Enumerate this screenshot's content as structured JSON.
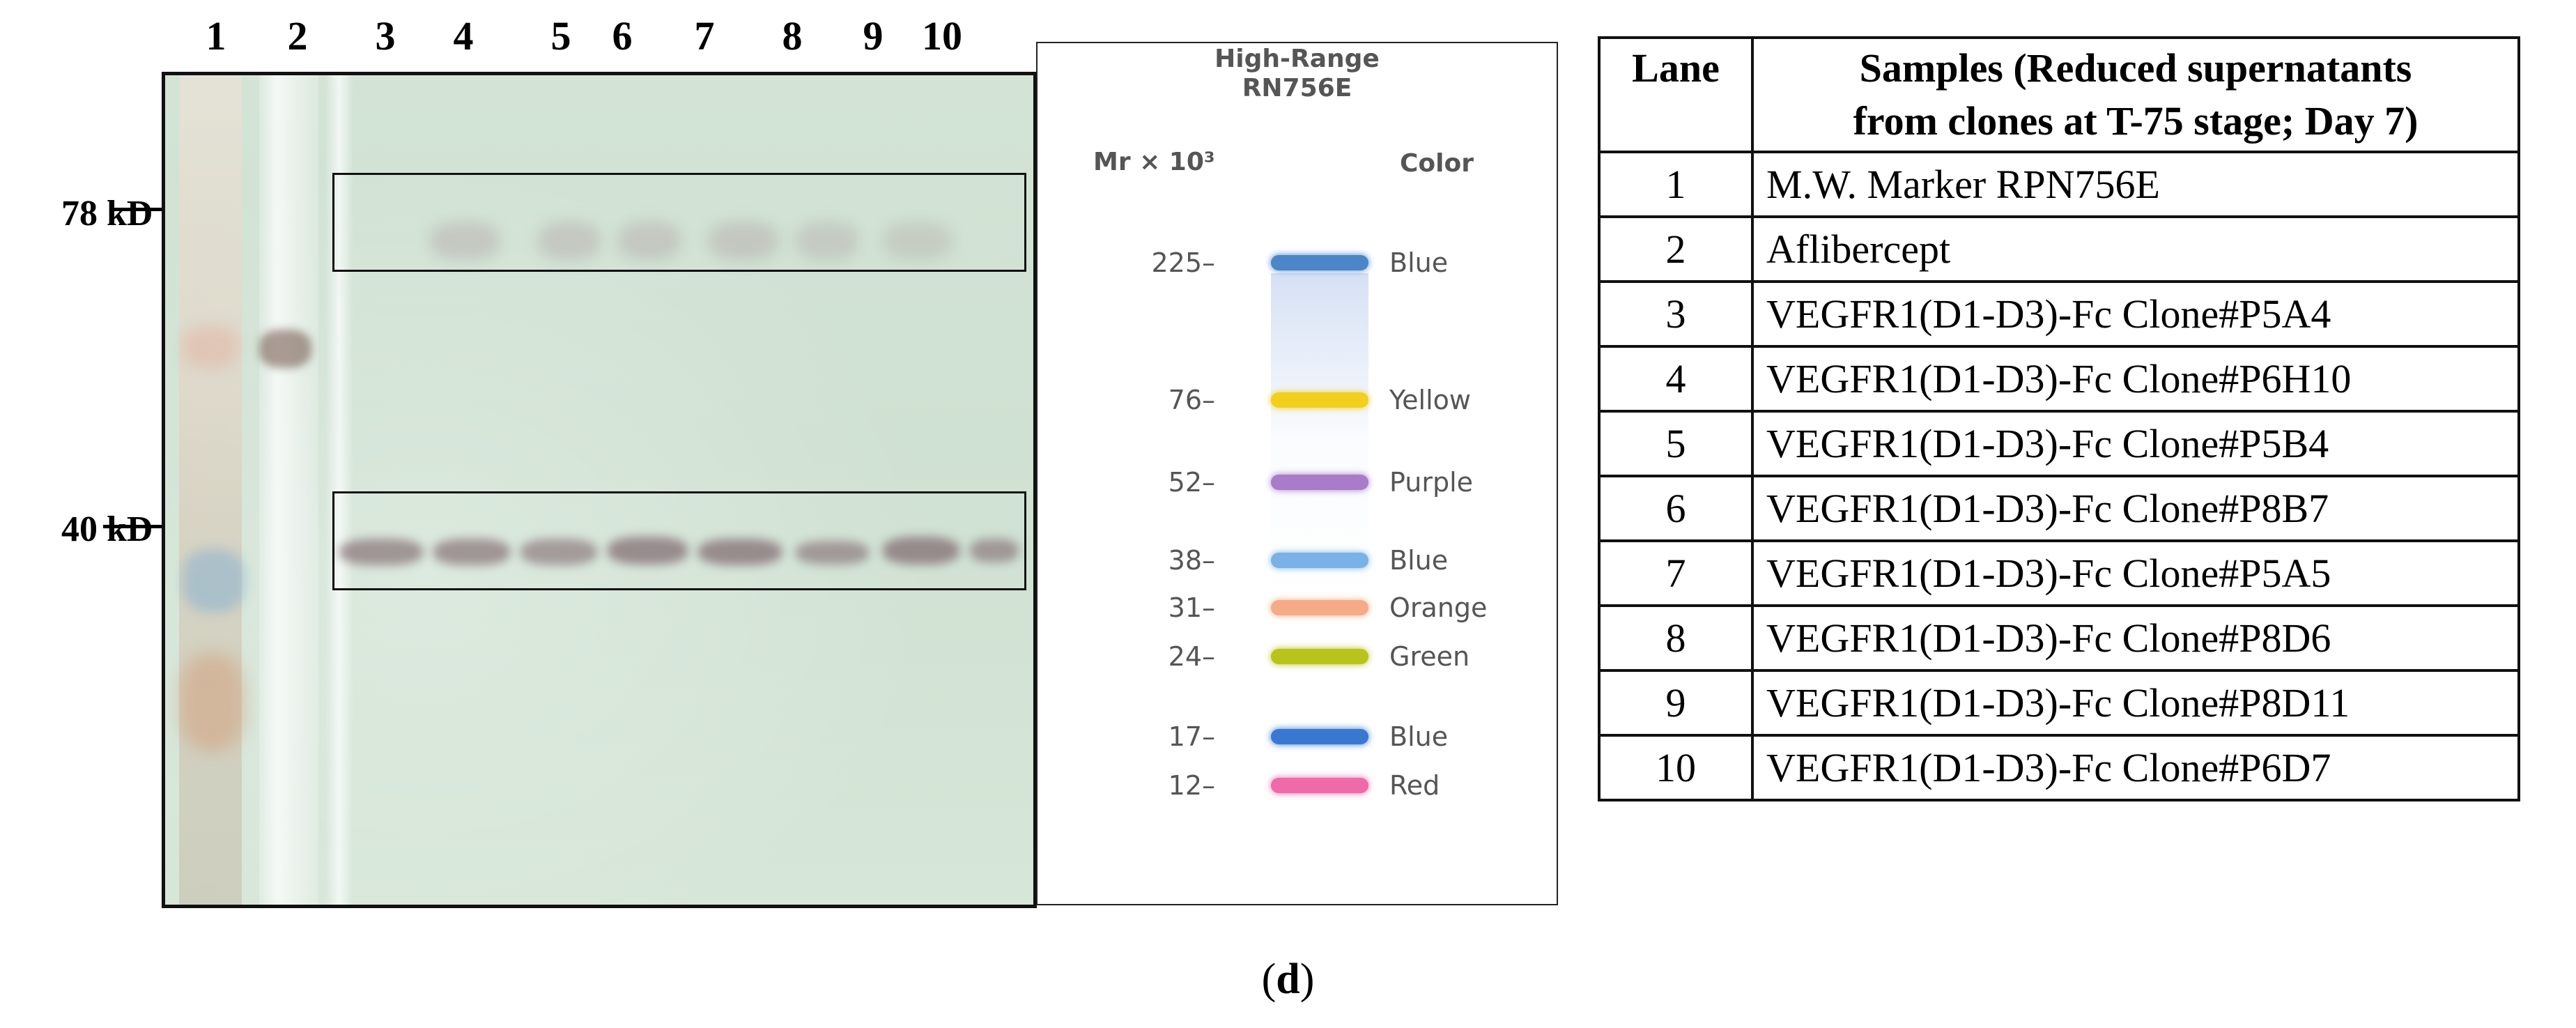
{
  "gel": {
    "lane_numbers": [
      "1",
      "2",
      "3",
      "4",
      "5",
      "6",
      "7",
      "8",
      "9",
      "10"
    ],
    "markers": [
      {
        "label": "78 kD"
      },
      {
        "label": "40 kD"
      }
    ]
  },
  "marker_chart": {
    "title_line1": "High-Range",
    "title_line2": "RN756E",
    "mw_header": "Mr × 10³",
    "color_header": "Color",
    "bands": [
      {
        "mw": "225–",
        "color_name": "Blue",
        "hex": "#4a86c8"
      },
      {
        "mw": "76–",
        "color_name": "Yellow",
        "hex": "#f2cf1d"
      },
      {
        "mw": "52–",
        "color_name": "Purple",
        "hex": "#a87cc8"
      },
      {
        "mw": "38–",
        "color_name": "Blue",
        "hex": "#79b2e6"
      },
      {
        "mw": "31–",
        "color_name": "Orange",
        "hex": "#f6ab86"
      },
      {
        "mw": "24–",
        "color_name": "Green",
        "hex": "#b8c41c"
      },
      {
        "mw": "17–",
        "color_name": "Blue",
        "hex": "#3a78d0"
      },
      {
        "mw": "12–",
        "color_name": "Red",
        "hex": "#ee6aa8"
      }
    ]
  },
  "table": {
    "header_lane": "Lane",
    "header_samples_line1": "Samples (Reduced supernatants",
    "header_samples_line2": "from clones at T-75 stage; Day 7)",
    "rows": [
      {
        "lane": "1",
        "sample": "M.W. Marker RPN756E"
      },
      {
        "lane": "2",
        "sample": "Aflibercept"
      },
      {
        "lane": "3",
        "sample": "VEGFR1(D1-D3)-Fc Clone#P5A4"
      },
      {
        "lane": "4",
        "sample": "VEGFR1(D1-D3)-Fc Clone#P6H10"
      },
      {
        "lane": "5",
        "sample": "VEGFR1(D1-D3)-Fc Clone#P5B4"
      },
      {
        "lane": "6",
        "sample": "VEGFR1(D1-D3)-Fc Clone#P8B7"
      },
      {
        "lane": "7",
        "sample": "VEGFR1(D1-D3)-Fc Clone#P5A5"
      },
      {
        "lane": "8",
        "sample": "VEGFR1(D1-D3)-Fc Clone#P8D6"
      },
      {
        "lane": "9",
        "sample": "VEGFR1(D1-D3)-Fc Clone#P8D11"
      },
      {
        "lane": "10",
        "sample": "VEGFR1(D1-D3)-Fc Clone#P6D7"
      }
    ]
  },
  "caption": {
    "open": "(",
    "letter": "d",
    "close": ")"
  }
}
